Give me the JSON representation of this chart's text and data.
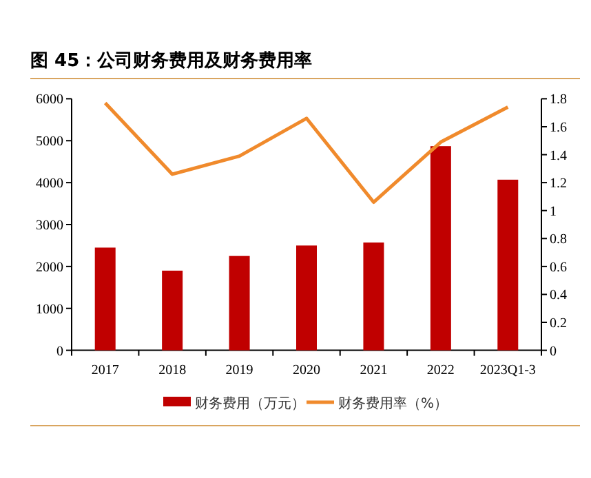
{
  "chart_data": {
    "type": "bar",
    "title": "图 45：公司财务费用及财务费用率",
    "categories": [
      "2017",
      "2018",
      "2019",
      "2020",
      "2021",
      "2022",
      "2023Q1-3"
    ],
    "series": [
      {
        "name": "财务费用（万元）",
        "color": "#c00000",
        "values": [
          2450,
          1900,
          2250,
          2500,
          2570,
          4870,
          4070
        ]
      },
      {
        "name": "财务费用率（%）",
        "type": "line",
        "axis": "y2",
        "color": "#f08a2c",
        "values": [
          1.77,
          1.26,
          1.39,
          1.66,
          1.06,
          1.49,
          1.74
        ]
      }
    ],
    "ylim": [
      0,
      6000
    ],
    "yticks": [
      0,
      1000,
      2000,
      3000,
      4000,
      5000,
      6000
    ],
    "y2lim": [
      0,
      1.8
    ],
    "y2ticks": [
      0,
      0.2,
      0.4,
      0.6,
      0.8,
      1,
      1.2,
      1.4,
      1.6,
      1.8
    ],
    "grid": false,
    "legend": "bottom",
    "marker": "none",
    "line_style": "solid"
  }
}
